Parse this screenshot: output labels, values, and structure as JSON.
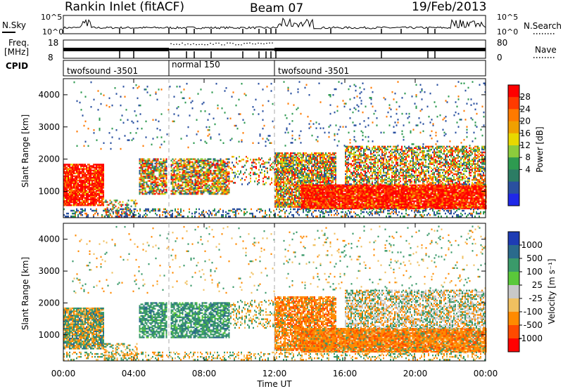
{
  "header": {
    "station": "Rankin Inlet (fitACF)",
    "beam": "Beam 07",
    "date": "19/Feb/2013"
  },
  "top_panels": {
    "nsky_label": "N.Sky",
    "nsky_ticks": [
      "10^5",
      "10^0"
    ],
    "nsearch_label": "N.Search",
    "nsearch_ticks": [
      "10^5",
      "10^0"
    ],
    "freq_label_1": "Freq.",
    "freq_label_2": "[MHz]",
    "freq_ticks": [
      "18",
      "8"
    ],
    "nave_label": "Nave",
    "nave_ticks": [
      "80",
      "0"
    ],
    "cpid_label": "CPID",
    "cpid_segments": [
      {
        "name": "twofsound -3501",
        "start": 0,
        "end": 6
      },
      {
        "name": "normal 150",
        "start": 6,
        "end": 12
      },
      {
        "name": "twofsound -3501",
        "start": 12,
        "end": 24
      }
    ]
  },
  "colorbars": {
    "power": {
      "label": "Power [dB]",
      "ticks": [
        "28",
        "24",
        "20",
        "16",
        "12",
        "8",
        "4"
      ],
      "colors": [
        "#ff0000",
        "#ff3a00",
        "#ff7a00",
        "#f0a000",
        "#e8d800",
        "#8ccc3c",
        "#2e9a50",
        "#2c7c64",
        "#2a50a0",
        "#1f28e8"
      ]
    },
    "velocity": {
      "label": "Velocity [m s⁻¹]",
      "ticks": [
        "1000",
        "500",
        "100",
        "25",
        "-25",
        "-100",
        "-500",
        "-1000"
      ],
      "colors": [
        "#1e3cb4",
        "#2a6a8c",
        "#3a9a6a",
        "#5ac83a",
        "#c8c8c8",
        "#f0c060",
        "#ff8a00",
        "#ff4a00",
        "#ff0000"
      ]
    }
  },
  "chart_data": [
    {
      "type": "heatmap",
      "title": "Power",
      "ylabel": "Slant Range [km]",
      "xlabel": "",
      "xlim": [
        0,
        24
      ],
      "ylim": [
        180,
        4500
      ],
      "yticks": [
        "1000",
        "2000",
        "3000",
        "4000"
      ],
      "xticks": [],
      "colorbar": "Power [dB]",
      "echo_regions": [
        {
          "t0": 0.0,
          "t1": 2.3,
          "r0": 550,
          "r1": 1850,
          "value": "26 dB"
        },
        {
          "t0": 4.3,
          "t1": 5.9,
          "r0": 900,
          "r1": 2000,
          "value": "14 dB"
        },
        {
          "t0": 6.1,
          "t1": 9.4,
          "r0": 900,
          "r1": 2000,
          "value": "16 dB"
        },
        {
          "t0": 12.0,
          "t1": 15.5,
          "r0": 500,
          "r1": 2200,
          "value": "20 dB"
        },
        {
          "t0": 13.5,
          "t1": 24.0,
          "r0": 450,
          "r1": 1200,
          "value": "28 dB"
        },
        {
          "t0": 16.0,
          "t1": 24.0,
          "r0": 1200,
          "r1": 2400,
          "value": "12 dB"
        }
      ]
    },
    {
      "type": "heatmap",
      "title": "Velocity",
      "ylabel": "Slant Range [km]",
      "xlabel": "Time UT",
      "xlim": [
        0,
        24
      ],
      "ylim": [
        180,
        4500
      ],
      "yticks": [
        "1000",
        "2000",
        "3000",
        "4000"
      ],
      "xticks": [
        "00:00",
        "04:00",
        "08:00",
        "12:00",
        "16:00",
        "20:00",
        "00:00"
      ],
      "colorbar": "Velocity [m s⁻¹]",
      "echo_regions": [
        {
          "t0": 0.0,
          "t1": 2.3,
          "r0": 550,
          "r1": 1850,
          "value": "-100 m/s"
        },
        {
          "t0": 4.3,
          "t1": 5.9,
          "r0": 900,
          "r1": 2000,
          "value": "100 m/s"
        },
        {
          "t0": 6.1,
          "t1": 9.4,
          "r0": 900,
          "r1": 2000,
          "value": "500 m/s"
        },
        {
          "t0": 12.0,
          "t1": 15.5,
          "r0": 500,
          "r1": 2200,
          "value": "-500 m/s"
        },
        {
          "t0": 13.5,
          "t1": 24.0,
          "r0": 450,
          "r1": 1200,
          "value": "-500 m/s"
        },
        {
          "t0": 16.0,
          "t1": 24.0,
          "r0": 1200,
          "r1": 2400,
          "value": "25 m/s"
        }
      ]
    }
  ]
}
